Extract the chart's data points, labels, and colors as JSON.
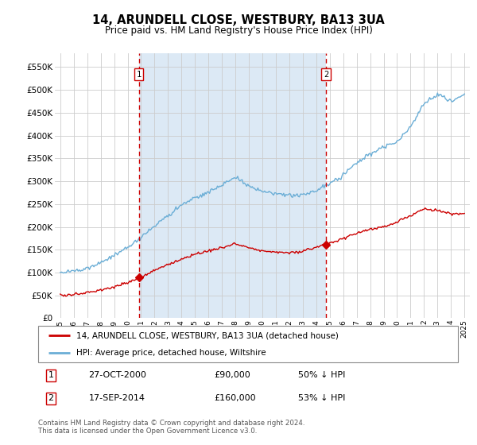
{
  "title": "14, ARUNDELL CLOSE, WESTBURY, BA13 3UA",
  "subtitle": "Price paid vs. HM Land Registry's House Price Index (HPI)",
  "legend_line1": "14, ARUNDELL CLOSE, WESTBURY, BA13 3UA (detached house)",
  "legend_line2": "HPI: Average price, detached house, Wiltshire",
  "footnote": "Contains HM Land Registry data © Crown copyright and database right 2024.\nThis data is licensed under the Open Government Licence v3.0.",
  "sale1_date": "27-OCT-2000",
  "sale1_price": 90000,
  "sale1_pct": "50% ↓ HPI",
  "sale2_date": "17-SEP-2014",
  "sale2_price": 160000,
  "sale2_pct": "53% ↓ HPI",
  "hpi_color": "#6baed6",
  "price_color": "#cc0000",
  "vline_color": "#cc0000",
  "bg_between_color": "#dce9f5",
  "bg_outside_color": "#f0f4fa",
  "ylim": [
    0,
    580000
  ],
  "yticks": [
    0,
    50000,
    100000,
    150000,
    200000,
    250000,
    300000,
    350000,
    400000,
    450000,
    500000,
    550000
  ],
  "sale1_x": 2000.83,
  "sale2_x": 2014.72,
  "sale1_marker_price": 90000,
  "sale2_marker_price": 160000,
  "xlim_left": 1994.6,
  "xlim_right": 2025.4
}
